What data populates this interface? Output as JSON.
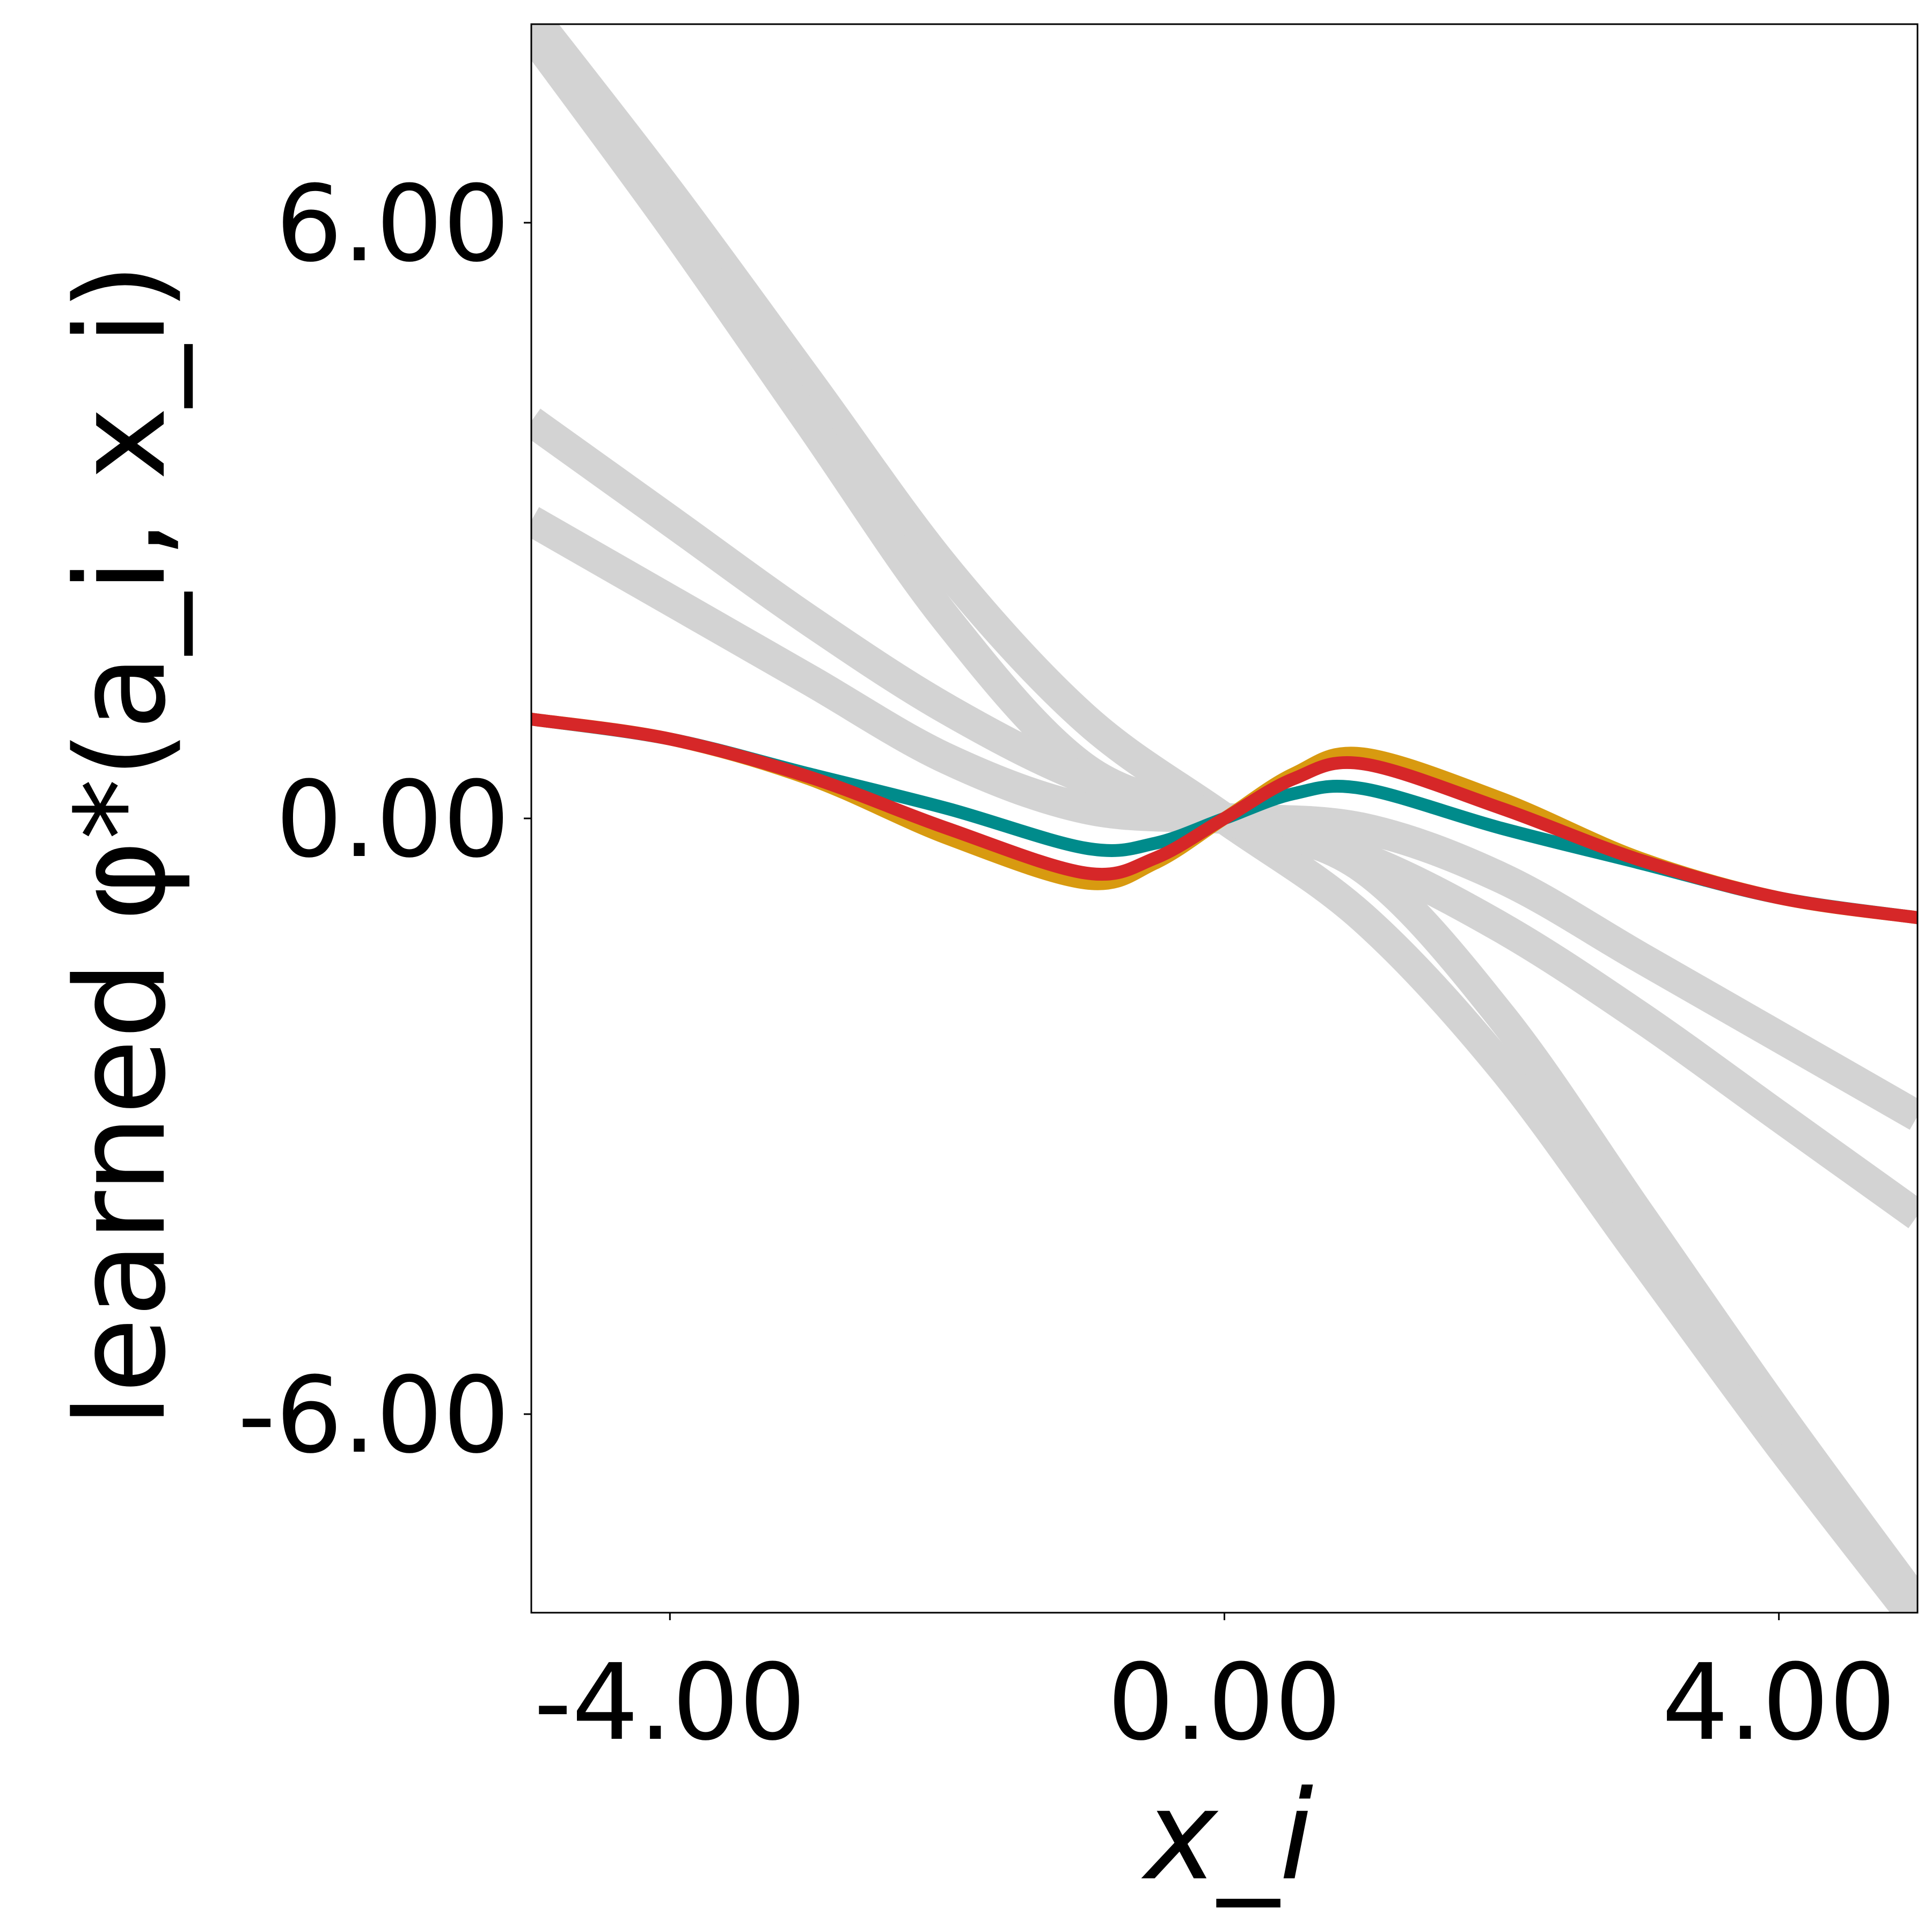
{
  "chart_data": {
    "type": "line",
    "title": "",
    "xlabel": "x_i",
    "ylabel": "learned φ*(a_i, x_i)",
    "xlim": [
      -5,
      5
    ],
    "ylim": [
      -8,
      8
    ],
    "x_ticks": [
      "-4.00",
      "0.00",
      "4.00"
    ],
    "x_tick_values": [
      -4,
      0,
      4
    ],
    "y_ticks": [
      "6.00",
      "0.00",
      "-6.00"
    ],
    "y_tick_values": [
      6,
      0,
      -6
    ],
    "grid": false,
    "legend": "none",
    "series": [
      {
        "color": "#d3d3d3",
        "x": [
          -5,
          -4,
          -3,
          -2,
          -1,
          0,
          1,
          2,
          3,
          4,
          5
        ],
        "y": [
          8.1,
          6.3,
          4.4,
          2.5,
          1.0,
          0,
          -1.0,
          -2.5,
          -4.4,
          -6.3,
          -8.1
        ]
      },
      {
        "color": "#d3d3d3",
        "x": [
          -5,
          -4,
          -3,
          -2,
          -1,
          0,
          1,
          2,
          3,
          4,
          5
        ],
        "y": [
          7.9,
          6.0,
          4.0,
          2.0,
          0.5,
          0,
          -0.5,
          -2.0,
          -4.0,
          -6.0,
          -7.9
        ]
      },
      {
        "color": "#d3d3d3",
        "x": [
          -5,
          -4,
          -3,
          -2,
          -1,
          0,
          1,
          2,
          3,
          4,
          5
        ],
        "y": [
          4.0,
          3.0,
          2.0,
          1.1,
          0.4,
          0,
          -0.4,
          -1.1,
          -2.0,
          -3.0,
          -4.0
        ]
      },
      {
        "color": "#d3d3d3",
        "x": [
          -5,
          -4,
          -3,
          -2,
          -1,
          0,
          1,
          2,
          3,
          4,
          5
        ],
        "y": [
          3.0,
          2.2,
          1.4,
          0.6,
          0.1,
          0,
          -0.1,
          -0.6,
          -1.4,
          -2.2,
          -3.0
        ]
      },
      {
        "color": "#008b8b",
        "x": [
          -5,
          -4,
          -3,
          -2,
          -1,
          -0.5,
          0,
          0.5,
          1,
          2,
          3,
          4,
          5
        ],
        "y": [
          1.0,
          0.8,
          0.45,
          0.1,
          -0.3,
          -0.25,
          0,
          0.25,
          0.3,
          -0.1,
          -0.45,
          -0.8,
          -1.0
        ]
      },
      {
        "color": "#d89a10",
        "x": [
          -5,
          -4,
          -3,
          -2,
          -1,
          -0.5,
          0,
          0.5,
          1,
          2,
          3,
          4,
          5
        ],
        "y": [
          1.0,
          0.8,
          0.4,
          -0.2,
          -0.65,
          -0.45,
          0,
          0.45,
          0.65,
          0.2,
          -0.4,
          -0.8,
          -1.0
        ]
      },
      {
        "color": "#d62728",
        "x": [
          -5,
          -4,
          -3,
          -2,
          -1,
          -0.5,
          0,
          0.5,
          1,
          2,
          3,
          4,
          5
        ],
        "y": [
          1.0,
          0.8,
          0.42,
          -0.1,
          -0.55,
          -0.4,
          0,
          0.4,
          0.55,
          0.1,
          -0.42,
          -0.8,
          -1.0
        ]
      }
    ]
  }
}
